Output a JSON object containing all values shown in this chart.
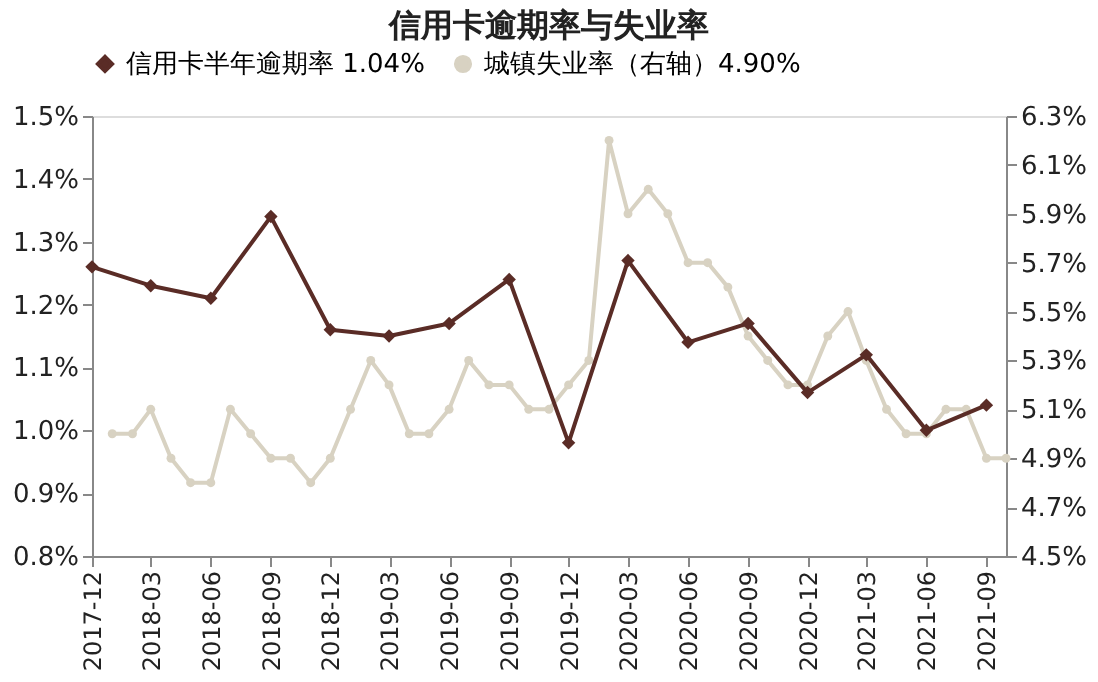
{
  "chart_data": {
    "type": "line",
    "title": "信用卡逾期率与失业率",
    "legend": "top",
    "grid": false,
    "line_style": "solid",
    "xlim": [
      "2017-12",
      "2021-10"
    ],
    "xticks": [
      {
        "value": "2017-12",
        "label": "2017-12"
      },
      {
        "value": "2018-03",
        "label": "2018-03"
      },
      {
        "value": "2018-06",
        "label": "2018-06"
      },
      {
        "value": "2018-09",
        "label": "2018-09"
      },
      {
        "value": "2018-12",
        "label": "2018-12"
      },
      {
        "value": "2019-03",
        "label": "2019-03"
      },
      {
        "value": "2019-06",
        "label": "2019-06"
      },
      {
        "value": "2019-09",
        "label": "2019-09"
      },
      {
        "value": "2019-12",
        "label": "2019-12"
      },
      {
        "value": "2020-03",
        "label": "2020-03"
      },
      {
        "value": "2020-06",
        "label": "2020-06"
      },
      {
        "value": "2020-09",
        "label": "2020-09"
      },
      {
        "value": "2020-12",
        "label": "2020-12"
      },
      {
        "value": "2021-03",
        "label": "2021-03"
      },
      {
        "value": "2021-06",
        "label": "2021-06"
      },
      {
        "value": "2021-09",
        "label": "2021-09"
      }
    ],
    "ylim": [
      0.8,
      1.5
    ],
    "yticks": [
      {
        "value": 0.8,
        "label": "0.8%"
      },
      {
        "value": 0.9,
        "label": "0.9%"
      },
      {
        "value": 1.0,
        "label": "1.0%"
      },
      {
        "value": 1.1,
        "label": "1.1%"
      },
      {
        "value": 1.2,
        "label": "1.2%"
      },
      {
        "value": 1.3,
        "label": "1.3%"
      },
      {
        "value": 1.4,
        "label": "1.4%"
      },
      {
        "value": 1.5,
        "label": "1.5%"
      }
    ],
    "y2lim": [
      4.5,
      6.3
    ],
    "y2ticks": [
      {
        "value": 4.5,
        "label": "4.5%"
      },
      {
        "value": 4.7,
        "label": "4.7%"
      },
      {
        "value": 4.9,
        "label": "4.9%"
      },
      {
        "value": 5.1,
        "label": "5.1%"
      },
      {
        "value": 5.3,
        "label": "5.3%"
      },
      {
        "value": 5.5,
        "label": "5.5%"
      },
      {
        "value": 5.7,
        "label": "5.7%"
      },
      {
        "value": 5.9,
        "label": "5.9%"
      },
      {
        "value": 6.1,
        "label": "6.1%"
      },
      {
        "value": 6.3,
        "label": "6.3%"
      }
    ],
    "series": [
      {
        "name": "信用卡半年逾期率 1.04%",
        "color": "#5a2c26",
        "marker": "diamond",
        "x": [
          "2017-12",
          "2018-03",
          "2018-06",
          "2018-09",
          "2018-12",
          "2019-03",
          "2019-06",
          "2019-09",
          "2019-12",
          "2020-03",
          "2020-06",
          "2020-09",
          "2020-12",
          "2021-03",
          "2021-06",
          "2021-09"
        ],
        "values": [
          1.26,
          1.23,
          1.21,
          1.34,
          1.16,
          1.15,
          1.17,
          1.24,
          0.98,
          1.27,
          1.14,
          1.17,
          1.06,
          1.12,
          1.0,
          1.04
        ]
      },
      {
        "name": "城镇失业率（右轴）4.90%",
        "color": "#d8d2c2",
        "marker": "circle",
        "axis": "y2",
        "x": [
          "2018-01",
          "2018-02",
          "2018-03",
          "2018-04",
          "2018-05",
          "2018-06",
          "2018-07",
          "2018-08",
          "2018-09",
          "2018-10",
          "2018-11",
          "2018-12",
          "2019-01",
          "2019-02",
          "2019-03",
          "2019-04",
          "2019-05",
          "2019-06",
          "2019-07",
          "2019-08",
          "2019-09",
          "2019-10",
          "2019-11",
          "2019-12",
          "2020-01",
          "2020-02",
          "2020-03",
          "2020-04",
          "2020-05",
          "2020-06",
          "2020-07",
          "2020-08",
          "2020-09",
          "2020-10",
          "2020-11",
          "2020-12",
          "2021-01",
          "2021-02",
          "2021-03",
          "2021-04",
          "2021-05",
          "2021-06",
          "2021-07",
          "2021-08",
          "2021-09",
          "2021-10"
        ],
        "values": [
          5.0,
          5.0,
          5.1,
          4.9,
          4.8,
          4.8,
          5.1,
          5.0,
          4.9,
          4.9,
          4.8,
          4.9,
          5.1,
          5.3,
          5.2,
          5.0,
          5.0,
          5.1,
          5.3,
          5.2,
          5.2,
          5.1,
          5.1,
          5.2,
          5.3,
          6.2,
          5.9,
          6.0,
          5.9,
          5.7,
          5.7,
          5.6,
          5.4,
          5.3,
          5.2,
          5.2,
          5.4,
          5.5,
          5.3,
          5.1,
          5.0,
          5.0,
          5.1,
          5.1,
          4.9,
          4.9
        ]
      }
    ]
  }
}
